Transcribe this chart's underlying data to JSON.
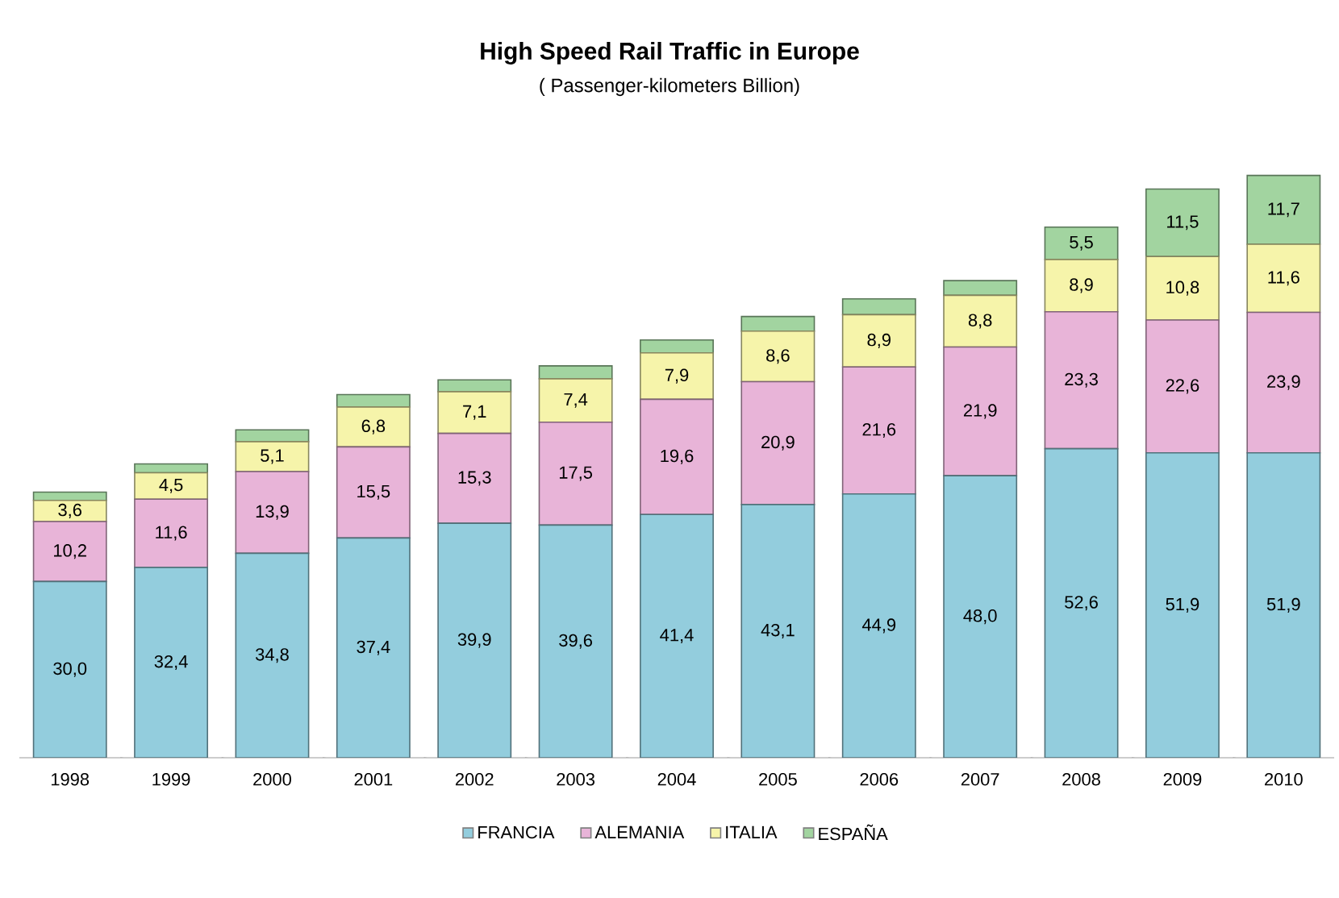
{
  "chart_data": {
    "type": "bar",
    "stacked": true,
    "title": "High Speed Rail Traffic in Europe",
    "subtitle": "( Passenger-kilometers Billion)",
    "categories": [
      "1998",
      "1999",
      "2000",
      "2001",
      "2002",
      "2003",
      "2004",
      "2005",
      "2006",
      "2007",
      "2008",
      "2009",
      "2010"
    ],
    "series": [
      {
        "name": "FRANCIA",
        "color": "#93cddd",
        "values": [
          30.0,
          32.4,
          34.8,
          37.4,
          39.9,
          39.6,
          41.4,
          43.1,
          44.9,
          48.0,
          52.6,
          51.9,
          51.9
        ],
        "value_labels": [
          "30,0",
          "32,4",
          "34,8",
          "37,4",
          "39,9",
          "39,6",
          "41,4",
          "43,1",
          "44,9",
          "48,0",
          "52,6",
          "51,9",
          "51,9"
        ]
      },
      {
        "name": "ALEMANIA",
        "color": "#e8b4d8",
        "values": [
          10.2,
          11.6,
          13.9,
          15.5,
          15.3,
          17.5,
          19.6,
          20.9,
          21.6,
          21.9,
          23.3,
          22.6,
          23.9
        ],
        "value_labels": [
          "10,2",
          "11,6",
          "13,9",
          "15,5",
          "15,3",
          "17,5",
          "19,6",
          "20,9",
          "21,6",
          "21,9",
          "23,3",
          "22,6",
          "23,9"
        ]
      },
      {
        "name": "ITALIA",
        "color": "#f6f4aa",
        "values": [
          3.6,
          4.5,
          5.1,
          6.8,
          7.1,
          7.4,
          7.9,
          8.6,
          8.9,
          8.8,
          8.9,
          10.8,
          11.6
        ],
        "value_labels": [
          "3,6",
          "4,5",
          "5,1",
          "6,8",
          "7,1",
          "7,4",
          "7,9",
          "8,6",
          "8,9",
          "8,8",
          "8,9",
          "10,8",
          "11,6"
        ]
      },
      {
        "name": "ESPAÑA",
        "color": "#a2d4a0",
        "values": [
          1.4,
          1.5,
          2.0,
          2.1,
          2.0,
          2.2,
          2.2,
          2.5,
          2.7,
          2.5,
          5.5,
          11.5,
          11.7
        ],
        "value_labels": [
          null,
          null,
          null,
          null,
          null,
          null,
          null,
          null,
          null,
          null,
          "5,5",
          "11,5",
          "11,7"
        ]
      }
    ],
    "legend": "bottom"
  }
}
